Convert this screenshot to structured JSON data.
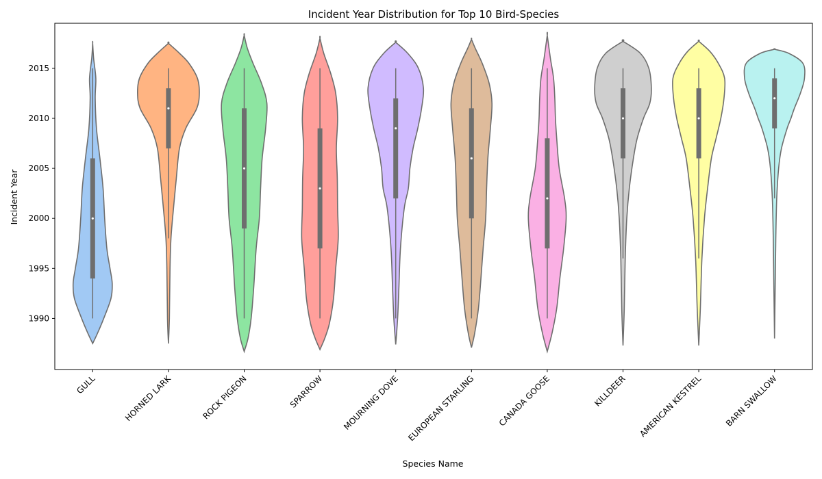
{
  "chart_data": {
    "type": "violin",
    "title": "Incident Year Distribution for Top 10 Bird-Species",
    "xlabel": "Species Name",
    "ylabel": "Incident Year",
    "ylim": [
      1984.9,
      2019.5
    ],
    "yticks": [
      1990,
      1995,
      2000,
      2005,
      2010,
      2015
    ],
    "grid": false,
    "categories": [
      "GULL",
      "HORNED LARK",
      "ROCK PIGEON",
      "SPARROW",
      "MOURNING DOVE",
      "EUROPEAN STARLING",
      "CANADA GOOSE",
      "KILLDEER",
      "AMERICAN KESTREL",
      "BARN SWALLOW"
    ],
    "colors": [
      "#a1c9f4",
      "#ffb482",
      "#8de5a1",
      "#ff9f9b",
      "#d0bbff",
      "#debb9b",
      "#fab0e4",
      "#cfcfcf",
      "#fffea3",
      "#b9f2f0"
    ],
    "series": [
      {
        "min": 1990,
        "q1": 1994,
        "median": 2000,
        "q3": 2006,
        "max": 2015,
        "density": [
          [
            1987.5,
            0
          ],
          [
            1988.5,
            0.15
          ],
          [
            1990,
            0.35
          ],
          [
            1992,
            0.58
          ],
          [
            1993.5,
            0.62
          ],
          [
            1995,
            0.55
          ],
          [
            1997,
            0.45
          ],
          [
            2000,
            0.38
          ],
          [
            2003,
            0.33
          ],
          [
            2006,
            0.23
          ],
          [
            2009,
            0.12
          ],
          [
            2012,
            0.08
          ],
          [
            2014,
            0.1
          ],
          [
            2016,
            0.03
          ],
          [
            2017.5,
            0
          ]
        ]
      },
      {
        "min": 1998,
        "q1": 2007,
        "median": 2011,
        "q3": 2013,
        "max": 2015,
        "density": [
          [
            1987.5,
            0
          ],
          [
            1990,
            0.03
          ],
          [
            1995,
            0.05
          ],
          [
            1998,
            0.08
          ],
          [
            2001,
            0.16
          ],
          [
            2004,
            0.25
          ],
          [
            2007,
            0.35
          ],
          [
            2009,
            0.55
          ],
          [
            2011,
            0.9
          ],
          [
            2012.5,
            0.98
          ],
          [
            2014,
            0.92
          ],
          [
            2015.5,
            0.65
          ],
          [
            2016.5,
            0.35
          ],
          [
            2017.5,
            0
          ]
        ]
      },
      {
        "min": 1990,
        "q1": 1999,
        "median": 2005,
        "q3": 2011,
        "max": 2015,
        "density": [
          [
            1986.7,
            0
          ],
          [
            1988,
            0.12
          ],
          [
            1990,
            0.22
          ],
          [
            1993,
            0.3
          ],
          [
            1997,
            0.38
          ],
          [
            2000,
            0.48
          ],
          [
            2003,
            0.52
          ],
          [
            2006,
            0.57
          ],
          [
            2009,
            0.68
          ],
          [
            2011.5,
            0.72
          ],
          [
            2013.5,
            0.55
          ],
          [
            2015.5,
            0.28
          ],
          [
            2017,
            0.1
          ],
          [
            2018.3,
            0
          ]
        ]
      },
      {
        "min": 1990,
        "q1": 1997,
        "median": 2003,
        "q3": 2009,
        "max": 2015,
        "density": [
          [
            1986.9,
            0
          ],
          [
            1988,
            0.15
          ],
          [
            1989.5,
            0.3
          ],
          [
            1992,
            0.43
          ],
          [
            1995,
            0.5
          ],
          [
            1998,
            0.58
          ],
          [
            2001,
            0.56
          ],
          [
            2004,
            0.55
          ],
          [
            2007,
            0.52
          ],
          [
            2010,
            0.56
          ],
          [
            2012.5,
            0.5
          ],
          [
            2014.5,
            0.34
          ],
          [
            2016.5,
            0.12
          ],
          [
            2018,
            0
          ]
        ]
      },
      {
        "min": 1990,
        "q1": 2002,
        "median": 2009,
        "q3": 2012,
        "max": 2015,
        "density": [
          [
            1987.4,
            0
          ],
          [
            1990,
            0.06
          ],
          [
            1993,
            0.1
          ],
          [
            1997,
            0.15
          ],
          [
            2001,
            0.27
          ],
          [
            2003,
            0.4
          ],
          [
            2005,
            0.45
          ],
          [
            2007,
            0.55
          ],
          [
            2009,
            0.7
          ],
          [
            2011,
            0.82
          ],
          [
            2013,
            0.88
          ],
          [
            2015,
            0.72
          ],
          [
            2016.5,
            0.38
          ],
          [
            2017.6,
            0
          ]
        ]
      },
      {
        "min": 1990,
        "q1": 2000,
        "median": 2006,
        "q3": 2011,
        "max": 2015,
        "density": [
          [
            1987.1,
            0
          ],
          [
            1988.5,
            0.1
          ],
          [
            1991,
            0.22
          ],
          [
            1994,
            0.3
          ],
          [
            1997,
            0.37
          ],
          [
            2000,
            0.45
          ],
          [
            2003,
            0.48
          ],
          [
            2006,
            0.52
          ],
          [
            2009,
            0.6
          ],
          [
            2011.5,
            0.65
          ],
          [
            2013.5,
            0.56
          ],
          [
            2015.5,
            0.34
          ],
          [
            2017,
            0.12
          ],
          [
            2017.9,
            0
          ]
        ]
      },
      {
        "min": 1990,
        "q1": 1997,
        "median": 2002,
        "q3": 2008,
        "max": 2015,
        "density": [
          [
            1986.7,
            0
          ],
          [
            1988.5,
            0.15
          ],
          [
            1991,
            0.3
          ],
          [
            1994,
            0.4
          ],
          [
            1997,
            0.52
          ],
          [
            2000,
            0.6
          ],
          [
            2002,
            0.55
          ],
          [
            2005,
            0.38
          ],
          [
            2008,
            0.3
          ],
          [
            2010,
            0.26
          ],
          [
            2012,
            0.24
          ],
          [
            2014,
            0.2
          ],
          [
            2016,
            0.1
          ],
          [
            2018.3,
            0
          ]
        ]
      },
      {
        "min": 1996,
        "q1": 2006,
        "median": 2010,
        "q3": 2013,
        "max": 2015,
        "density": [
          [
            1987.3,
            0
          ],
          [
            1991,
            0.04
          ],
          [
            1996,
            0.07
          ],
          [
            2000,
            0.12
          ],
          [
            2003,
            0.2
          ],
          [
            2006,
            0.33
          ],
          [
            2008,
            0.45
          ],
          [
            2010,
            0.65
          ],
          [
            2011.5,
            0.85
          ],
          [
            2013,
            0.9
          ],
          [
            2015,
            0.82
          ],
          [
            2016.5,
            0.55
          ],
          [
            2017.7,
            0
          ]
        ]
      },
      {
        "min": 1996,
        "q1": 2006,
        "median": 2010,
        "q3": 2013,
        "max": 2015,
        "density": [
          [
            1987.3,
            0
          ],
          [
            1991,
            0.05
          ],
          [
            1996,
            0.1
          ],
          [
            2000,
            0.18
          ],
          [
            2003,
            0.28
          ],
          [
            2006,
            0.4
          ],
          [
            2008,
            0.55
          ],
          [
            2010,
            0.7
          ],
          [
            2012,
            0.8
          ],
          [
            2014,
            0.82
          ],
          [
            2015.5,
            0.62
          ],
          [
            2016.7,
            0.35
          ],
          [
            2017.7,
            0
          ]
        ]
      },
      {
        "min": 2002,
        "q1": 2009,
        "median": 2012,
        "q3": 2014,
        "max": 2015,
        "density": [
          [
            1988,
            0
          ],
          [
            1993,
            0.02
          ],
          [
            1998,
            0.04
          ],
          [
            2002,
            0.07
          ],
          [
            2005,
            0.13
          ],
          [
            2007,
            0.22
          ],
          [
            2009,
            0.4
          ],
          [
            2010,
            0.52
          ],
          [
            2011,
            0.63
          ],
          [
            2012.5,
            0.82
          ],
          [
            2014,
            0.95
          ],
          [
            2015.5,
            0.9
          ],
          [
            2016.5,
            0.45
          ],
          [
            2016.9,
            0
          ]
        ]
      }
    ]
  }
}
